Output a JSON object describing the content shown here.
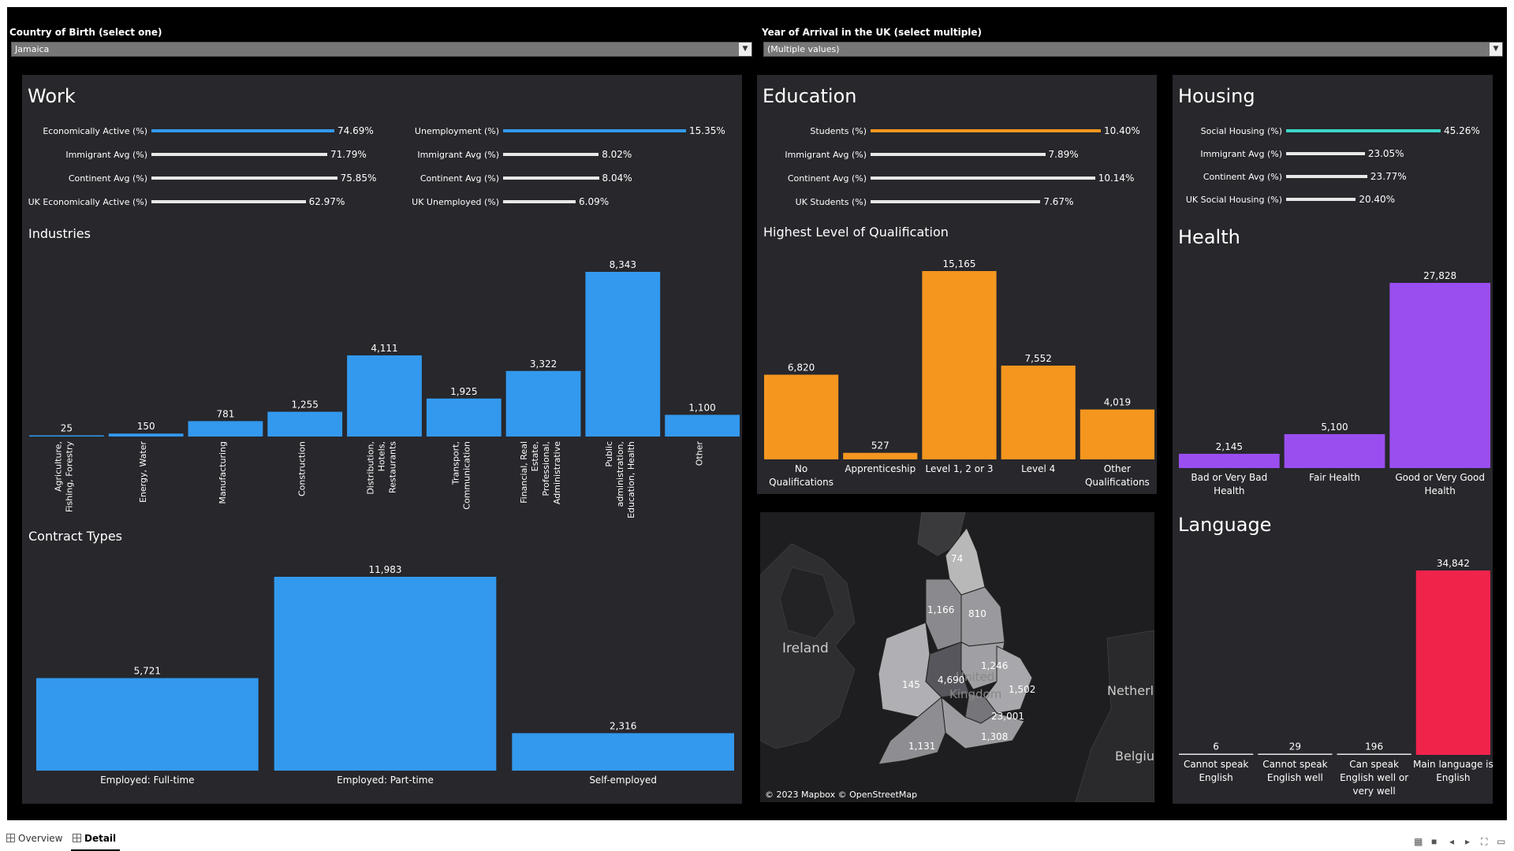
{
  "filters": {
    "country": {
      "label": "Country of Birth (select one)",
      "value": "Jamaica"
    },
    "year": {
      "label": "Year of Arrival in the UK (select multiple)",
      "value": "(Multiple values)"
    }
  },
  "colors": {
    "work": "#3399ee",
    "education": "#f5961f",
    "housing": "#3dd6c6",
    "health": "#9b4ef0",
    "language": "#f0234b",
    "comparison": "#e8e8e8",
    "panel": "#27272c"
  },
  "work": {
    "title": "Work",
    "left_rows": [
      {
        "label": "Economically Active (%)",
        "value": "74.69%",
        "pct": 74.69,
        "highlight": true
      },
      {
        "label": "Immigrant Avg (%)",
        "value": "71.79%",
        "pct": 71.79,
        "highlight": false
      },
      {
        "label": "Continent Avg (%)",
        "value": "75.85%",
        "pct": 75.85,
        "highlight": false
      },
      {
        "label": "UK Economically Active (%)",
        "value": "62.97%",
        "pct": 62.97,
        "highlight": false
      }
    ],
    "right_rows": [
      {
        "label": "Unemployment (%)",
        "value": "15.35%",
        "pct": 15.35,
        "highlight": true
      },
      {
        "label": "Immigrant Avg (%)",
        "value": "8.02%",
        "pct": 8.02,
        "highlight": false
      },
      {
        "label": "Continent Avg (%)",
        "value": "8.04%",
        "pct": 8.04,
        "highlight": false
      },
      {
        "label": "UK Unemployed (%)",
        "value": "6.09%",
        "pct": 6.09,
        "highlight": false
      }
    ],
    "industries": {
      "title": "Industries",
      "chart_data": {
        "type": "bar",
        "categories": [
          [
            "Agriculture,",
            "Fishing, Forestry"
          ],
          [
            "Energy, Water"
          ],
          [
            "Manufacturing"
          ],
          [
            "Construction"
          ],
          [
            "Distribution,",
            "Hotels,",
            "Restaurants"
          ],
          [
            "Transport,",
            "Communication"
          ],
          [
            "Financial, Real",
            "Estate,",
            "Professional,",
            "Administrative"
          ],
          [
            "Public",
            "administration,",
            "Education, Health"
          ],
          [
            "Other"
          ]
        ],
        "values": [
          25,
          150,
          781,
          1255,
          4111,
          1925,
          3322,
          8343,
          1100
        ],
        "labels": [
          "25",
          "150",
          "781",
          "1,255",
          "4,111",
          "1,925",
          "3,322",
          "8,343",
          "1,100"
        ]
      }
    },
    "contracts": {
      "title": "Contract Types",
      "chart_data": {
        "type": "bar",
        "categories": [
          "Employed: Full-time",
          "Employed: Part-time",
          "Self-employed"
        ],
        "values": [
          5721,
          11983,
          2316
        ],
        "labels": [
          "5,721",
          "11,983",
          "2,316"
        ]
      }
    }
  },
  "education": {
    "title": "Education",
    "rows": [
      {
        "label": "Students (%)",
        "value": "10.40%",
        "pct": 10.4,
        "highlight": true
      },
      {
        "label": "Immigrant Avg (%)",
        "value": "7.89%",
        "pct": 7.89,
        "highlight": false
      },
      {
        "label": "Continent Avg (%)",
        "value": "10.14%",
        "pct": 10.14,
        "highlight": false
      },
      {
        "label": "UK Students (%)",
        "value": "7.67%",
        "pct": 7.67,
        "highlight": false
      }
    ],
    "qualification": {
      "title": "Highest Level of Qualification",
      "chart_data": {
        "type": "bar",
        "categories": [
          [
            "No",
            "Qualifications"
          ],
          [
            "Apprenticeship"
          ],
          [
            "Level 1, 2 or 3"
          ],
          [
            "Level 4"
          ],
          [
            "Other",
            "Qualifications"
          ]
        ],
        "values": [
          6820,
          527,
          15165,
          7552,
          4019
        ],
        "labels": [
          "6,820",
          "527",
          "15,165",
          "7,552",
          "4,019"
        ]
      }
    }
  },
  "map": {
    "attribution": "© 2023 Mapbox © OpenStreetMap",
    "place_labels": [
      "Ireland",
      "Netherl",
      "Belgium",
      "United",
      "Kingdom"
    ],
    "regions": [
      {
        "name": "North East",
        "value": "74"
      },
      {
        "name": "North West",
        "value": "1,166"
      },
      {
        "name": "Yorkshire and The Humber",
        "value": "810"
      },
      {
        "name": "East Midlands",
        "value": "1,246"
      },
      {
        "name": "West Midlands",
        "value": "4,690"
      },
      {
        "name": "Wales",
        "value": "145"
      },
      {
        "name": "East of England",
        "value": "1,502"
      },
      {
        "name": "London",
        "value": "23,001"
      },
      {
        "name": "South East",
        "value": "1,308"
      },
      {
        "name": "South West",
        "value": "1,131"
      }
    ]
  },
  "housing": {
    "title": "Housing",
    "rows": [
      {
        "label": "Social Housing (%)",
        "value": "45.26%",
        "pct": 45.26,
        "highlight": true
      },
      {
        "label": "Immigrant Avg (%)",
        "value": "23.05%",
        "pct": 23.05,
        "highlight": false
      },
      {
        "label": "Continent Avg (%)",
        "value": "23.77%",
        "pct": 23.77,
        "highlight": false
      },
      {
        "label": "UK Social Housing (%)",
        "value": "20.40%",
        "pct": 20.4,
        "highlight": false
      }
    ]
  },
  "health": {
    "title": "Health",
    "chart_data": {
      "type": "bar",
      "categories": [
        [
          "Bad or Very Bad",
          "Health"
        ],
        [
          "Fair Health"
        ],
        [
          "Good or Very Good",
          "Health"
        ]
      ],
      "values": [
        2145,
        5100,
        27828
      ],
      "labels": [
        "2,145",
        "5,100",
        "27,828"
      ]
    }
  },
  "language": {
    "title": "Language",
    "chart_data": {
      "type": "bar",
      "categories": [
        [
          "Cannot speak",
          "English"
        ],
        [
          "Cannot speak",
          "English well"
        ],
        [
          "Can speak",
          "English well or",
          "very well"
        ],
        [
          "Main language is",
          "English"
        ]
      ],
      "values": [
        6,
        29,
        196,
        34842
      ],
      "labels": [
        "6",
        "29",
        "196",
        "34,842"
      ]
    }
  },
  "tabs": [
    {
      "label": "Overview",
      "active": false
    },
    {
      "label": "Detail",
      "active": true
    }
  ]
}
